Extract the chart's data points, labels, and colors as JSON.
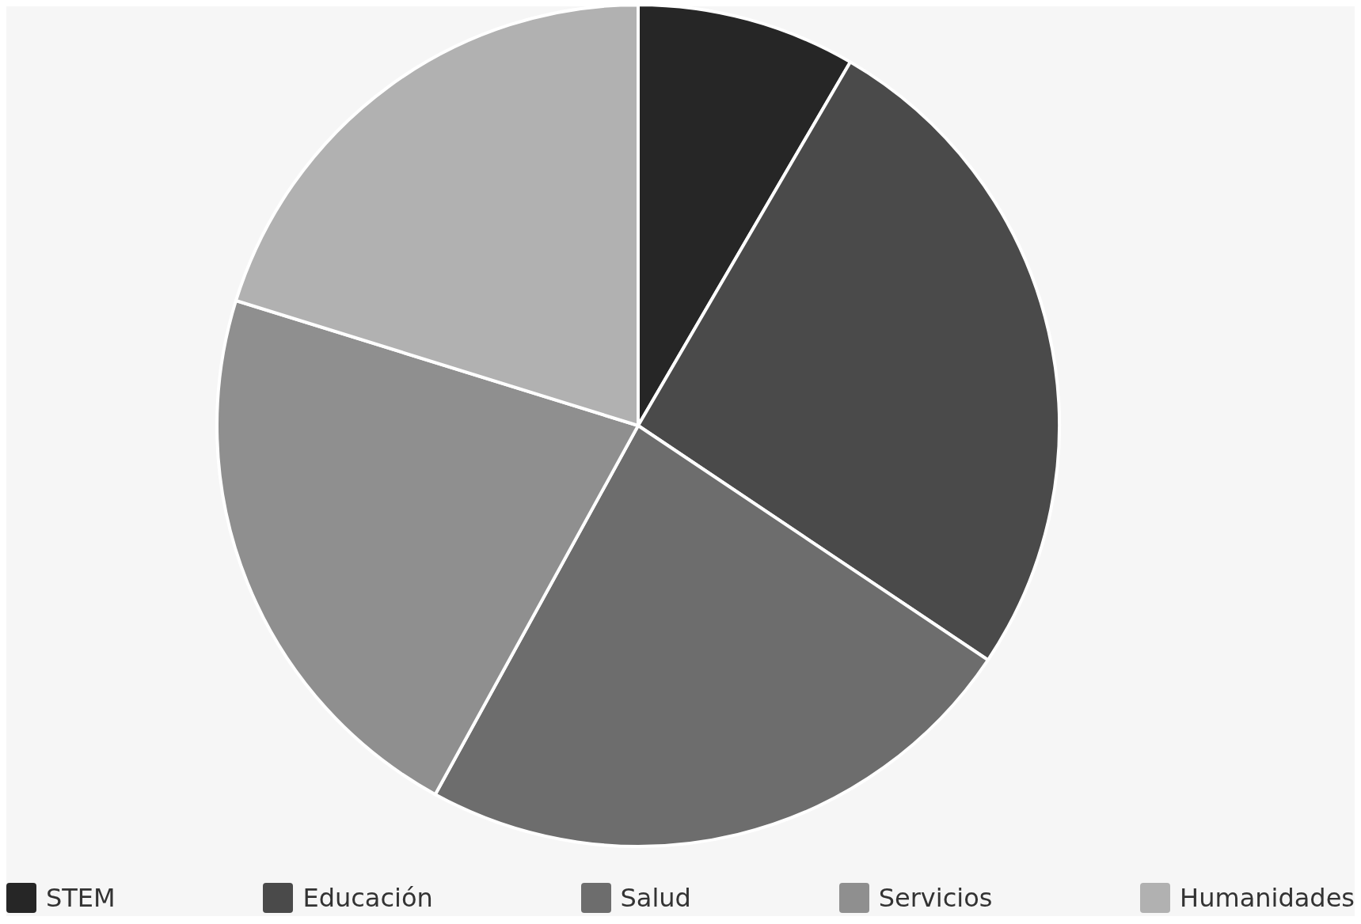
{
  "chart_data": {
    "type": "pie",
    "categories": [
      "STEM",
      "Educación",
      "Salud",
      "Servicios",
      "Humanidades"
    ],
    "values": [
      8.4,
      26,
      23.6,
      21.8,
      20.2
    ],
    "colors": [
      "#262626",
      "#4a4a4a",
      "#6d6d6d",
      "#8f8f8f",
      "#b1b1b1"
    ],
    "legend": "bottom"
  }
}
